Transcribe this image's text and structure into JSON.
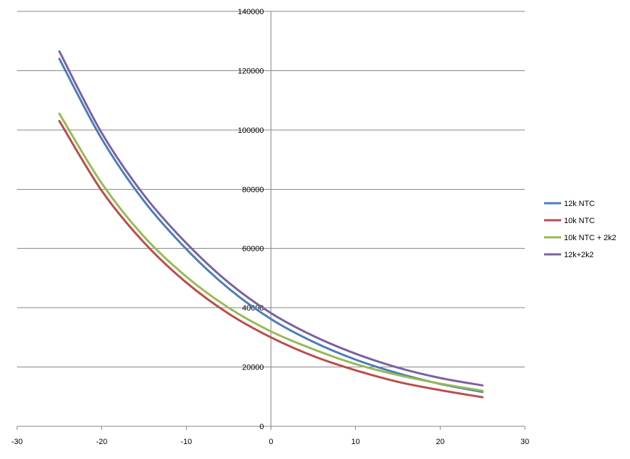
{
  "chart_data": {
    "type": "line",
    "title": "",
    "xlabel": "",
    "ylabel": "",
    "xlim": [
      -30,
      30
    ],
    "ylim": [
      0,
      140000
    ],
    "x_ticks": [
      -30,
      -20,
      -10,
      0,
      10,
      20,
      30
    ],
    "y_ticks": [
      0,
      20000,
      40000,
      60000,
      80000,
      100000,
      120000,
      140000
    ],
    "x_tick_labels": [
      "-30",
      "-20",
      "-10",
      "0",
      "10",
      "20",
      "30"
    ],
    "y_tick_labels": [
      "0",
      "20000",
      "40000",
      "60000",
      "80000",
      "100000",
      "120000",
      "140000"
    ],
    "grid": "horizontal",
    "legend_position": "right",
    "x": [
      -25,
      -20,
      -15,
      -10,
      -5,
      0,
      5,
      10,
      15,
      20,
      25
    ],
    "series": [
      {
        "name": "12k NTC",
        "color": "#4a7ebb",
        "values": [
          124000,
          97000,
          76000,
          59800,
          46500,
          36200,
          28500,
          22500,
          17900,
          14300,
          11600
        ]
      },
      {
        "name": "10k NTC",
        "color": "#be4b48",
        "values": [
          103000,
          79500,
          62000,
          48500,
          38000,
          30000,
          23700,
          18900,
          15000,
          12200,
          9800
        ]
      },
      {
        "name": "10k NTC + 2k2",
        "color": "#98b954",
        "values": [
          105500,
          82000,
          64000,
          50500,
          40000,
          32000,
          26000,
          21000,
          17300,
          14400,
          12000
        ]
      },
      {
        "name": "12k+2k2",
        "color": "#7d60a0",
        "values": [
          126500,
          99000,
          78000,
          61800,
          48500,
          38200,
          30500,
          24500,
          19800,
          16300,
          13800
        ]
      }
    ]
  }
}
